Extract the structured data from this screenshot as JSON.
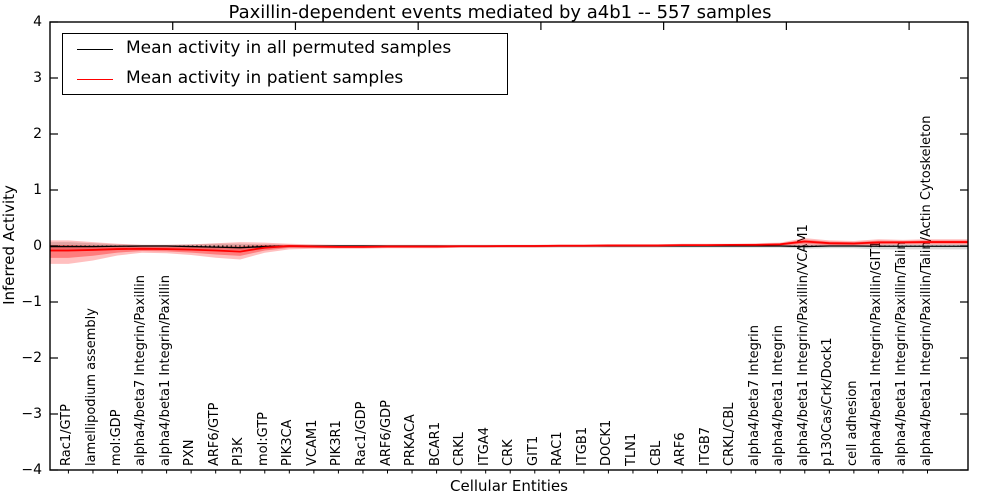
{
  "title": "Paxillin-dependent events mediated by a4b1 -- 557 samples",
  "legend": {
    "items": [
      {
        "label": "Mean activity in all permuted samples",
        "color": "#000000"
      },
      {
        "label": "Mean activity in patient samples",
        "color": "#ff0000"
      }
    ]
  },
  "axes": {
    "xlabel": "Cellular Entities",
    "ylabel": "Inferred Activity",
    "ytick_values": [
      4,
      3,
      2,
      1,
      0,
      -1,
      -2,
      -3,
      -4
    ],
    "ytick_labels": [
      "4",
      "3",
      "2",
      "1",
      "0",
      "−1",
      "−2",
      "−3",
      "−4"
    ]
  },
  "chart_data": {
    "type": "line",
    "title": "Paxillin-dependent events mediated by a4b1 -- 557 samples",
    "xlabel": "Cellular Entities",
    "ylabel": "Inferred Activity",
    "ylim": [
      -4,
      4
    ],
    "grid": false,
    "xtick_rotation": 90,
    "legend_position": "upper left",
    "zero_reference_line": {
      "y": 0,
      "style": "dotted",
      "color": "#000000"
    },
    "top_axis_major_ticks_every": 5,
    "categories": [
      "Rac1/GTP",
      "lamellipodium assembly",
      "mol:GDP",
      "alpha4/beta7 Integrin/Paxillin",
      "alpha4/beta1 Integrin/Paxillin",
      "PXN",
      "ARF6/GTP",
      "PI3K",
      "mol:GTP",
      "PIK3CA",
      "VCAM1",
      "PIK3R1",
      "Rac1/GDP",
      "ARF6/GDP",
      "PRKACA",
      "BCAR1",
      "CRKL",
      "ITGA4",
      "CRK",
      "GIT1",
      "RAC1",
      "ITGB1",
      "DOCK1",
      "TLN1",
      "CBL",
      "ARF6",
      "ITGB7",
      "CRKL/CBL",
      "alpha4/beta7 Integrin",
      "alpha4/beta1 Integrin",
      "alpha4/beta1 Integrin/Paxillin/VCAM1",
      "p130Cas/Crk/Dock1",
      "cell adhesion",
      "alpha4/beta1 Integrin/Paxillin/GIT1",
      "alpha4/beta1 Integrin/Paxillin/Talin",
      "alpha4/beta1 Integrin/Paxillin/Talin/Actin Cytoskeleton"
    ],
    "series": [
      {
        "name": "Mean activity in all permuted samples",
        "color": "#000000",
        "line_width": 1.3,
        "values": [
          -0.01,
          -0.01,
          -0.005,
          0,
          0,
          -0.01,
          -0.02,
          -0.03,
          -0.01,
          0,
          0,
          0,
          0,
          0,
          0,
          0,
          0,
          0,
          0,
          0,
          0,
          0,
          0,
          0,
          0,
          0,
          0,
          0,
          0,
          0,
          -0.01,
          0,
          0,
          -0.005,
          -0.005,
          -0.005
        ],
        "band": {
          "color": "rgba(130,130,130,0.30)",
          "upper": [
            0.07,
            0.05,
            0.03,
            0.02,
            0.02,
            0.03,
            0.04,
            0.04,
            0.03,
            0.02,
            0.02,
            0.02,
            0.02,
            0.02,
            0.02,
            0.02,
            0.02,
            0.02,
            0.02,
            0.02,
            0.02,
            0.02,
            0.02,
            0.02,
            0.02,
            0.02,
            0.02,
            0.02,
            0.02,
            0.02,
            0.03,
            0.03,
            0.03,
            0.03,
            0.03,
            0.03
          ],
          "lower": [
            -0.1,
            -0.08,
            -0.05,
            -0.04,
            -0.04,
            -0.05,
            -0.06,
            -0.07,
            -0.05,
            -0.03,
            -0.03,
            -0.03,
            -0.03,
            -0.03,
            -0.03,
            -0.03,
            -0.03,
            -0.03,
            -0.03,
            -0.03,
            -0.03,
            -0.03,
            -0.03,
            -0.03,
            -0.03,
            -0.03,
            -0.03,
            -0.03,
            -0.03,
            -0.03,
            -0.05,
            -0.04,
            -0.04,
            -0.06,
            -0.06,
            -0.06
          ]
        }
      },
      {
        "name": "Mean activity in patient samples",
        "color": "#ff0000",
        "line_width": 1.8,
        "values": [
          -0.08,
          -0.07,
          -0.055,
          -0.05,
          -0.055,
          -0.065,
          -0.08,
          -0.1,
          -0.03,
          0,
          -0.01,
          -0.015,
          -0.015,
          -0.01,
          -0.01,
          -0.01,
          -0.005,
          -0.005,
          0,
          0,
          0.005,
          0.005,
          0.01,
          0.01,
          0.01,
          0.015,
          0.015,
          0.02,
          0.02,
          0.03,
          0.08,
          0.05,
          0.045,
          0.065,
          0.065,
          0.07
        ],
        "band": {
          "color": "rgba(255,0,0,0.25)",
          "inner_color": "rgba(255,0,0,0.35)",
          "upper": [
            0.1,
            0.07,
            0.04,
            0.02,
            0.02,
            0.03,
            0.05,
            0.07,
            0.06,
            0.04,
            0.03,
            0.02,
            0.02,
            0.02,
            0.02,
            0.02,
            0.02,
            0.02,
            0.02,
            0.02,
            0.03,
            0.03,
            0.03,
            0.03,
            0.03,
            0.04,
            0.04,
            0.04,
            0.05,
            0.06,
            0.14,
            0.1,
            0.09,
            0.12,
            0.11,
            0.12
          ],
          "lower": [
            -0.32,
            -0.26,
            -0.17,
            -0.12,
            -0.13,
            -0.16,
            -0.21,
            -0.24,
            -0.12,
            -0.06,
            -0.05,
            -0.05,
            -0.05,
            -0.04,
            -0.04,
            -0.04,
            -0.03,
            -0.03,
            -0.03,
            -0.03,
            -0.02,
            -0.02,
            -0.02,
            -0.02,
            -0.02,
            -0.01,
            -0.01,
            -0.01,
            -0.01,
            0,
            0.01,
            0,
            0,
            0.01,
            0.02,
            0.02
          ]
        }
      }
    ]
  }
}
